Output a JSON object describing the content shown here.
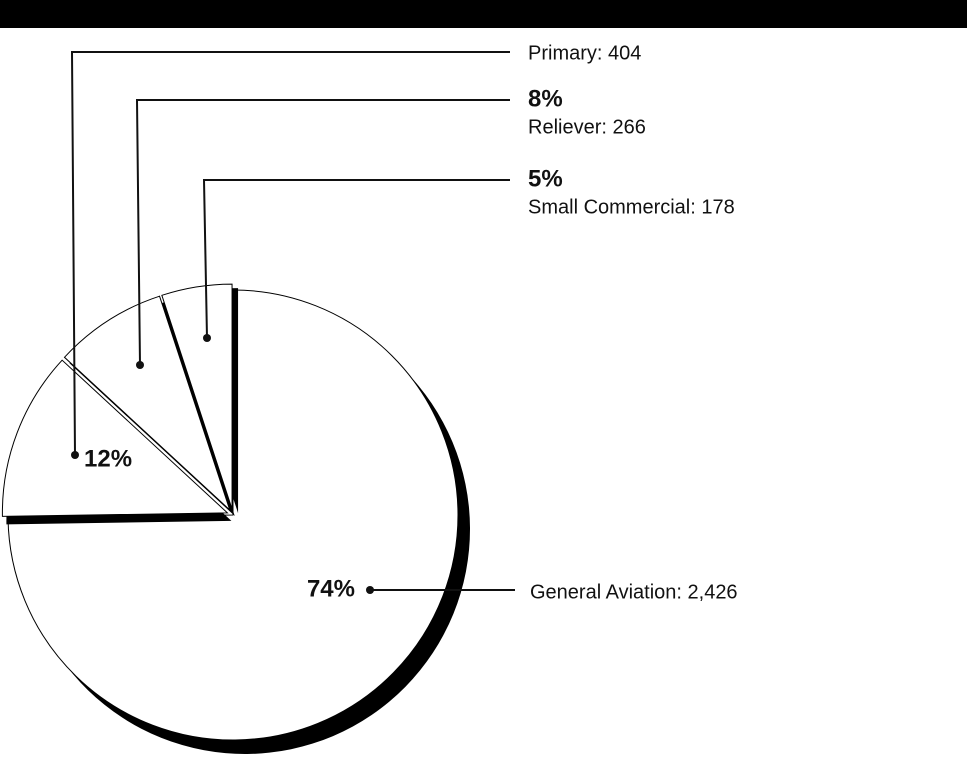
{
  "chart_data": {
    "type": "pie",
    "categories": [
      "General Aviation: 2,426",
      "Primary: 404",
      "Reliever: 266",
      "Small Commercial: 178"
    ],
    "values": [
      74,
      12,
      8,
      5
    ],
    "value_labels": [
      "74%",
      "12%",
      "8%",
      "5%"
    ]
  }
}
